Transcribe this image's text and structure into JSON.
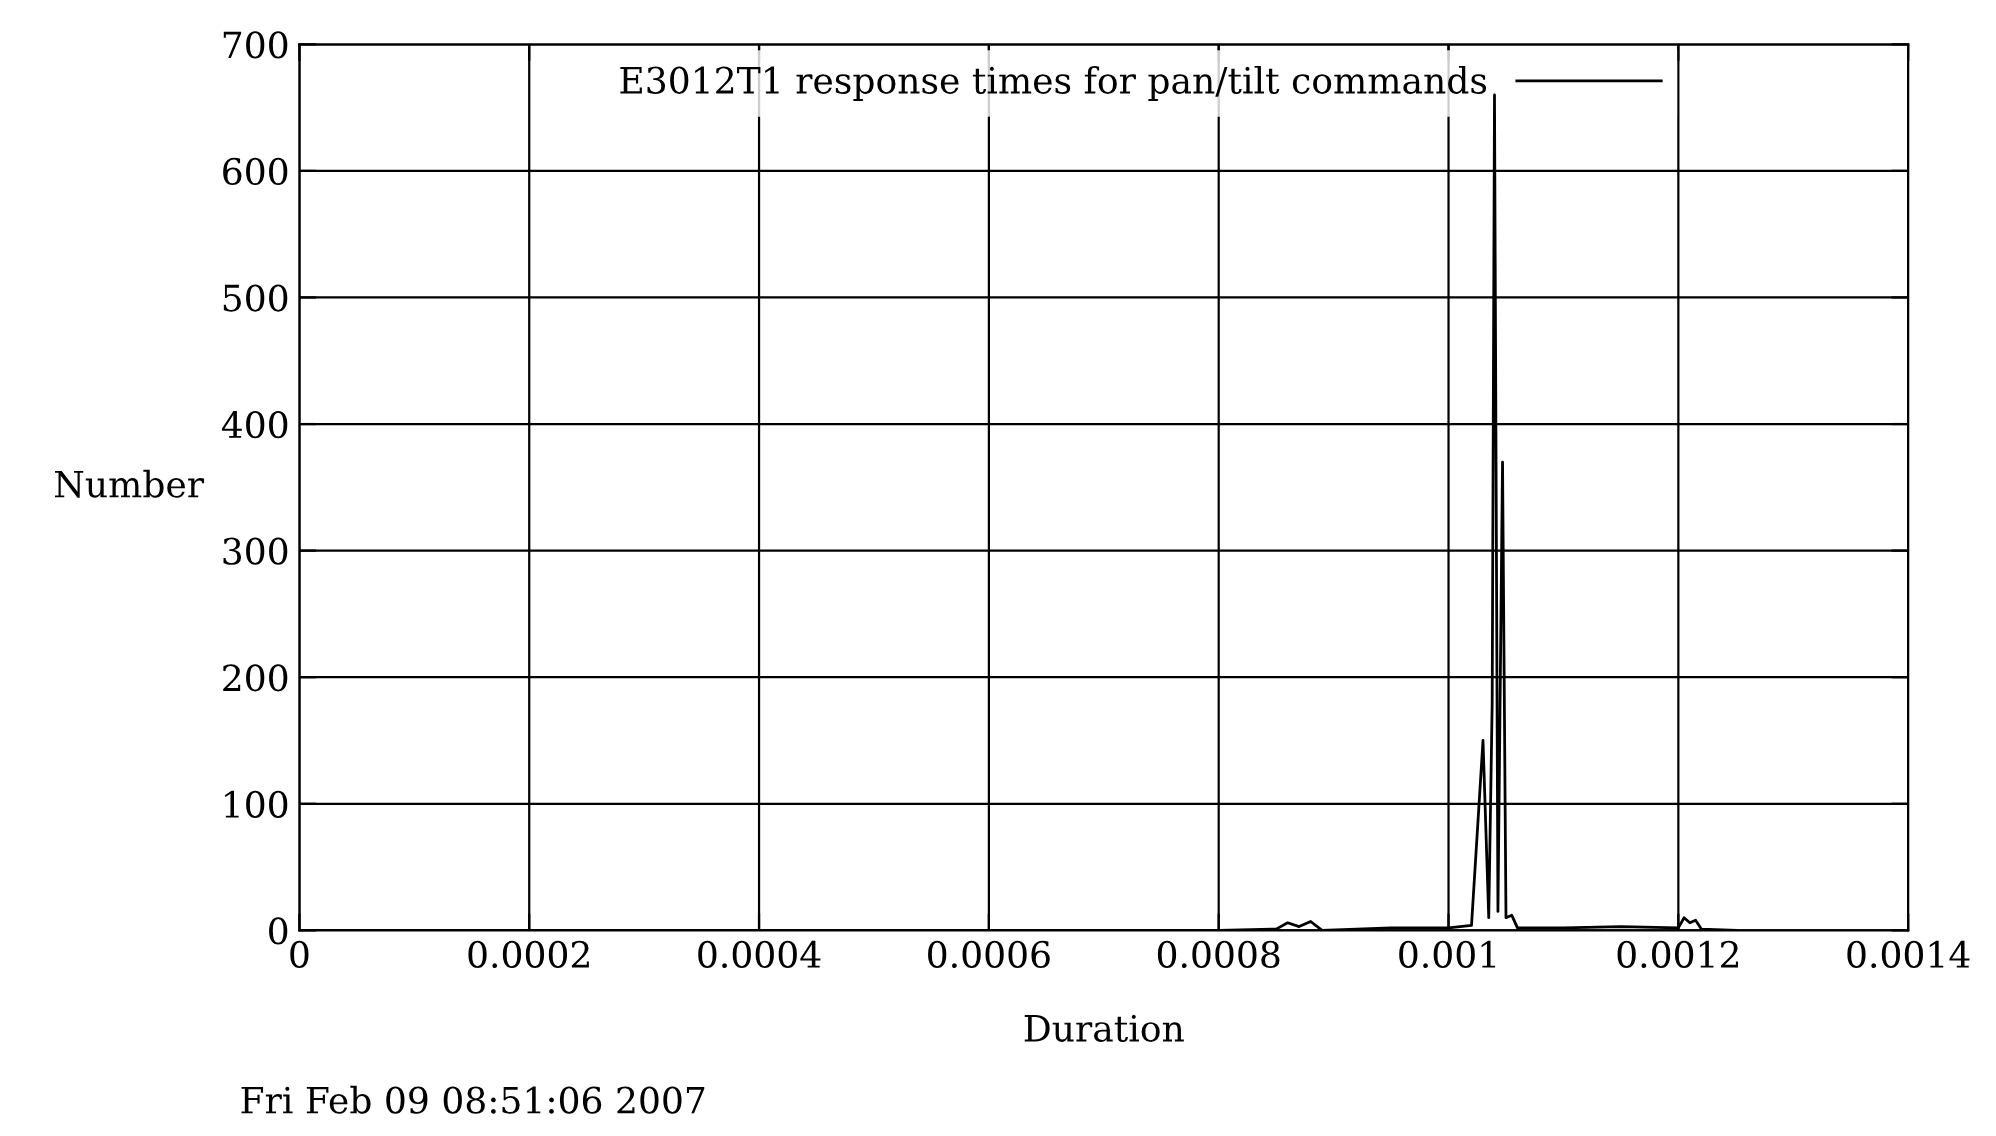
{
  "chart_data": {
    "type": "line",
    "xlabel": "Duration",
    "ylabel": "Number",
    "xlim": [
      0,
      0.0014
    ],
    "ylim": [
      0,
      700
    ],
    "xticks": [
      0,
      0.0002,
      0.0004,
      0.0006,
      0.0008,
      0.001,
      0.0012,
      0.0014
    ],
    "yticks": [
      0,
      100,
      200,
      300,
      400,
      500,
      600,
      700
    ],
    "grid": true,
    "legend": "top right",
    "marker": "none",
    "line_style": "solid",
    "annotations": [
      "Fri Feb 09 08:51:06 2007"
    ],
    "series": [
      {
        "name": "E3012T1 response times for pan/tilt commands",
        "color": "#000000",
        "x": [
          0,
          0.0008,
          0.00085,
          0.00086,
          0.00087,
          0.00088,
          0.00089,
          0.00095,
          0.001,
          0.00102,
          0.00103,
          0.001035,
          0.001038,
          0.00104,
          0.001043,
          0.001047,
          0.00105,
          0.001055,
          0.00106,
          0.0011,
          0.00115,
          0.0012,
          0.001205,
          0.00121,
          0.001215,
          0.00122,
          0.00125
        ],
        "values": [
          0,
          0,
          1,
          6,
          3,
          7,
          0,
          2,
          2,
          4,
          150,
          10,
          180,
          660,
          15,
          370,
          10,
          12,
          2,
          2,
          3,
          2,
          10,
          6,
          8,
          1,
          0
        ]
      }
    ]
  }
}
